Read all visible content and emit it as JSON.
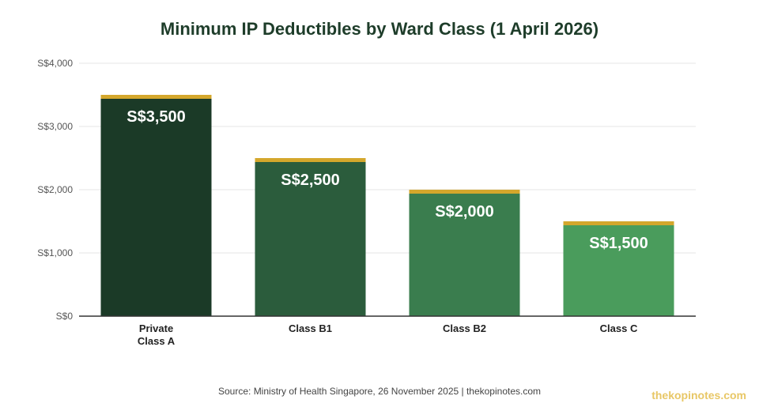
{
  "chart_data": {
    "type": "bar",
    "title": "Minimum IP Deductibles by Ward Class (1 April 2026)",
    "categories": [
      [
        "Private",
        "Class A"
      ],
      [
        "Class B1"
      ],
      [
        "Class B2"
      ],
      [
        "Class C"
      ]
    ],
    "values": [
      3500,
      2500,
      2000,
      1500
    ],
    "data_labels": [
      "S$3,500",
      "S$2,500",
      "S$2,000",
      "S$1,500"
    ],
    "bar_colors": [
      "#1b3a27",
      "#2b5c3c",
      "#3a7d4e",
      "#4a9c5c"
    ],
    "top_accent_color": "#d4a72c",
    "ylim": [
      0,
      4000
    ],
    "yticks": [
      0,
      1000,
      2000,
      3000,
      4000
    ],
    "ytick_labels": [
      "S$0",
      "S$1,000",
      "S$2,000",
      "S$3,000",
      "S$4,000"
    ],
    "grid": true,
    "xlabel": "",
    "ylabel": ""
  },
  "source": "Source: Ministry of Health Singapore, 26 November 2025 | thekopinotes.com",
  "watermark": "thekopinotes.com"
}
